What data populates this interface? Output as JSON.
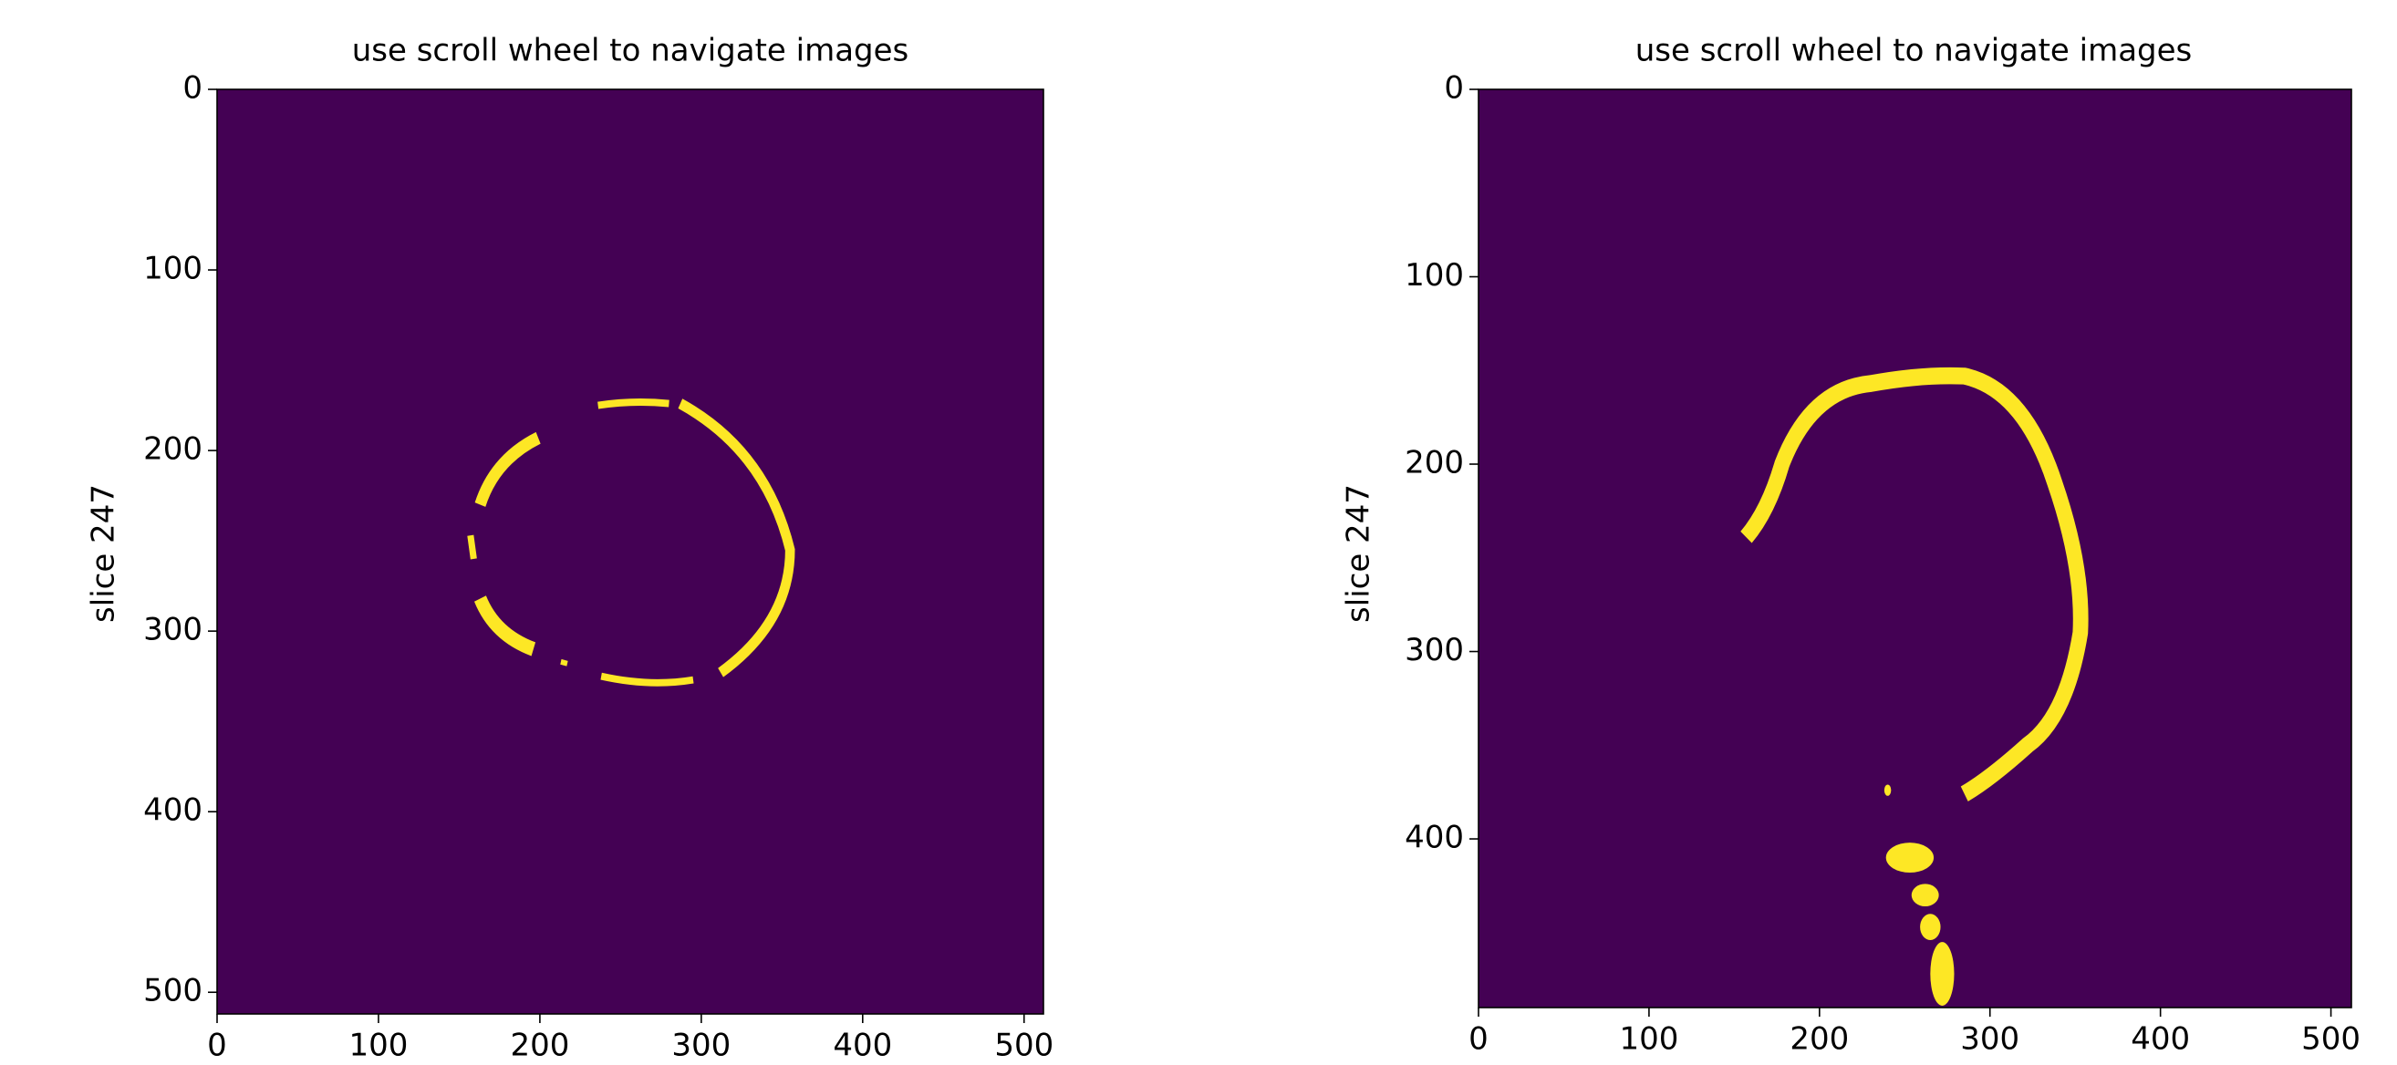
{
  "chart_data": [
    {
      "type": "image",
      "title": "use scroll wheel to navigate images",
      "ylabel": "slice 247",
      "xlim": [
        0,
        512
      ],
      "ylim": [
        512,
        0
      ],
      "xticks": [
        0,
        100,
        200,
        300,
        400,
        500
      ],
      "yticks": [
        0,
        100,
        200,
        300,
        400,
        500
      ],
      "background_color": "#440154",
      "mask_color": "#fde725"
    },
    {
      "type": "image",
      "title": "use scroll wheel to navigate images",
      "ylabel": "slice 247",
      "xlim": [
        0,
        512
      ],
      "ylim": [
        490,
        0
      ],
      "xticks": [
        0,
        100,
        200,
        300,
        400,
        500
      ],
      "yticks": [
        0,
        100,
        200,
        300,
        400
      ],
      "background_color": "#440154",
      "mask_color": "#fde725"
    }
  ]
}
